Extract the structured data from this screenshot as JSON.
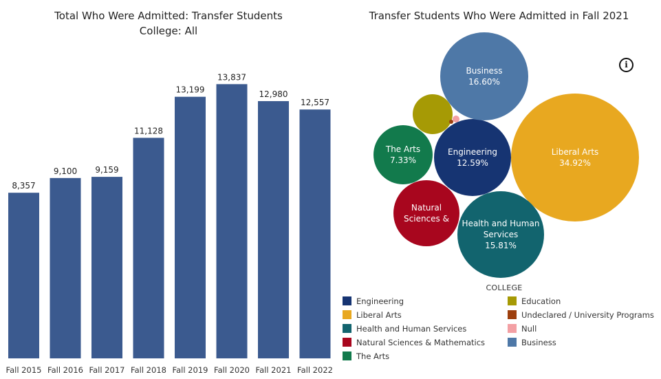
{
  "chart_data": [
    {
      "type": "bar",
      "title": "Total Who Were Admitted: Transfer Students",
      "subtitle": "College: All",
      "categories": [
        "Fall 2015",
        "Fall 2016",
        "Fall 2017",
        "Fall 2018",
        "Fall 2019",
        "Fall 2020",
        "Fall 2021",
        "Fall 2022"
      ],
      "values": [
        8357,
        9100,
        9159,
        11128,
        13199,
        13837,
        12980,
        12557
      ],
      "value_labels": [
        "8,357",
        "9,100",
        "9,159",
        "11,128",
        "13,199",
        "13,837",
        "12,980",
        "12,557"
      ],
      "bar_color": "#3b5a8f",
      "grid": false,
      "ylim": [
        0,
        16000
      ]
    },
    {
      "type": "bubble",
      "title": "Transfer Students Who Were Admitted  in Fall 2021",
      "legend_title": "COLLEGE",
      "legend_placement": "bottom",
      "items": [
        {
          "college": "Engineering",
          "label": "Engineering",
          "value_label": "12.59%",
          "value": 12.59,
          "color": "#163472"
        },
        {
          "college": "Liberal Arts",
          "label": "Liberal Arts",
          "value_label": "34.92%",
          "value": 34.92,
          "color": "#e8a820"
        },
        {
          "college": "Health and Human Services",
          "label": "Health and Human Services",
          "value_label": "15.81%",
          "value": 15.81,
          "color": "#12646e"
        },
        {
          "college": "Natural Sciences & Mathematics",
          "label": "Natural Sciences &",
          "value_label": "",
          "color": "#a8061e"
        },
        {
          "college": "The Arts",
          "label": "The Arts",
          "value_label": "7.33%",
          "value": 7.33,
          "color": "#127a4c"
        },
        {
          "college": "Education",
          "label": "",
          "value_label": "",
          "color": "#a69a05"
        },
        {
          "college": "Undeclared / University Programs",
          "label": "",
          "value_label": "",
          "color": "#9e3f0e"
        },
        {
          "college": "Null",
          "label": "",
          "value_label": "",
          "color": "#f3a0a4"
        },
        {
          "college": "Business",
          "label": "Business",
          "value_label": "16.60%",
          "value": 16.6,
          "color": "#4e78a7"
        }
      ],
      "legend": [
        [
          "Engineering",
          "Liberal Arts",
          "Health and Human Services",
          "Natural Sciences & Mathematics",
          "The Arts"
        ],
        [
          "Education",
          "Undeclared / University Programs",
          "Null",
          "Business"
        ]
      ]
    }
  ],
  "info_icon": {
    "glyph": "i",
    "name": "info-icon"
  }
}
